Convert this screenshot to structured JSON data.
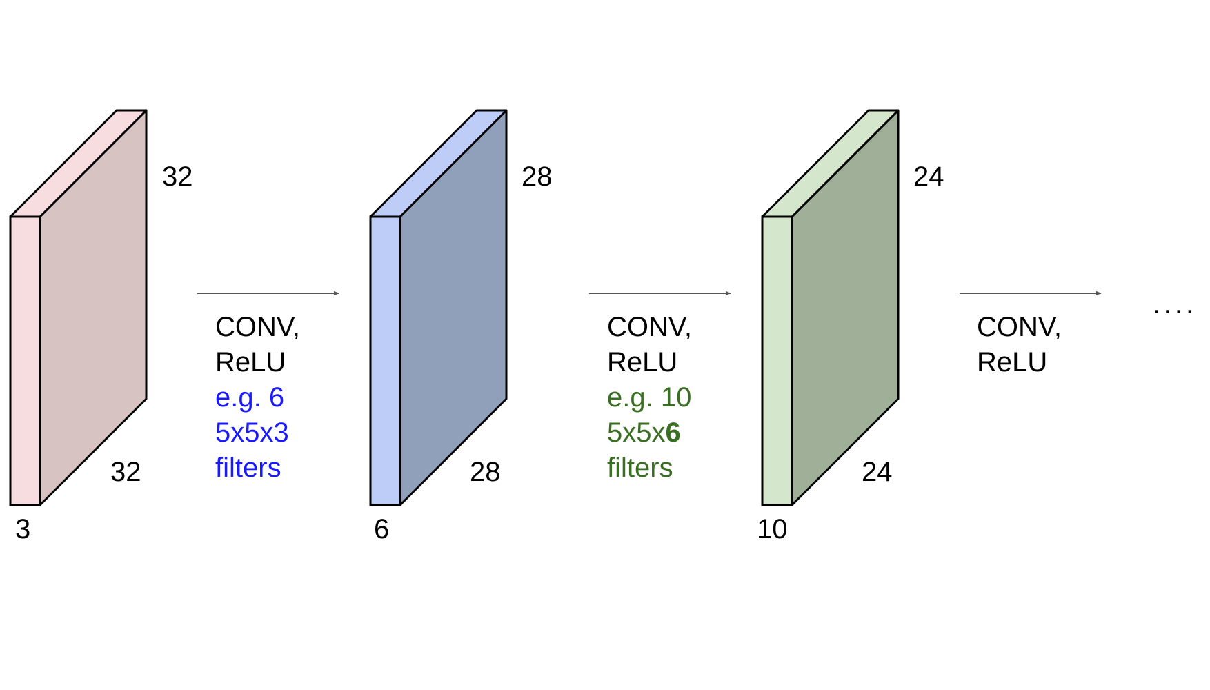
{
  "volumes": [
    {
      "depth": "3",
      "height": "32",
      "width": "32",
      "colors": {
        "front": "#f7dde0",
        "side": "#d8c3c3",
        "top": "#f7dde0"
      }
    },
    {
      "depth": "6",
      "height": "28",
      "width": "28",
      "colors": {
        "front": "#bdcdf7",
        "side": "#909fba",
        "top": "#bdcdf7"
      }
    },
    {
      "depth": "10",
      "height": "24",
      "width": "24",
      "colors": {
        "front": "#d4e6cc",
        "side": "#9faf98",
        "top": "#d4e6cc"
      }
    }
  ],
  "steps": [
    {
      "op_line1": "CONV,",
      "op_line2": "ReLU",
      "note_line1": "e.g. 6",
      "note_line2_a": "5x5x3",
      "note_line2_b": "",
      "note_line3": "filters",
      "note_color": "#1a1aff"
    },
    {
      "op_line1": "CONV,",
      "op_line2": "ReLU",
      "note_line1": "e.g. 10",
      "note_line2_a": "5x5x",
      "note_line2_b": "6",
      "note_line3": "filters",
      "note_color": "#3a6e22"
    },
    {
      "op_line1": "CONV,",
      "op_line2": "ReLU"
    }
  ],
  "ellipsis": "....",
  "arrow_color": "#555555",
  "outline_color": "#000000"
}
